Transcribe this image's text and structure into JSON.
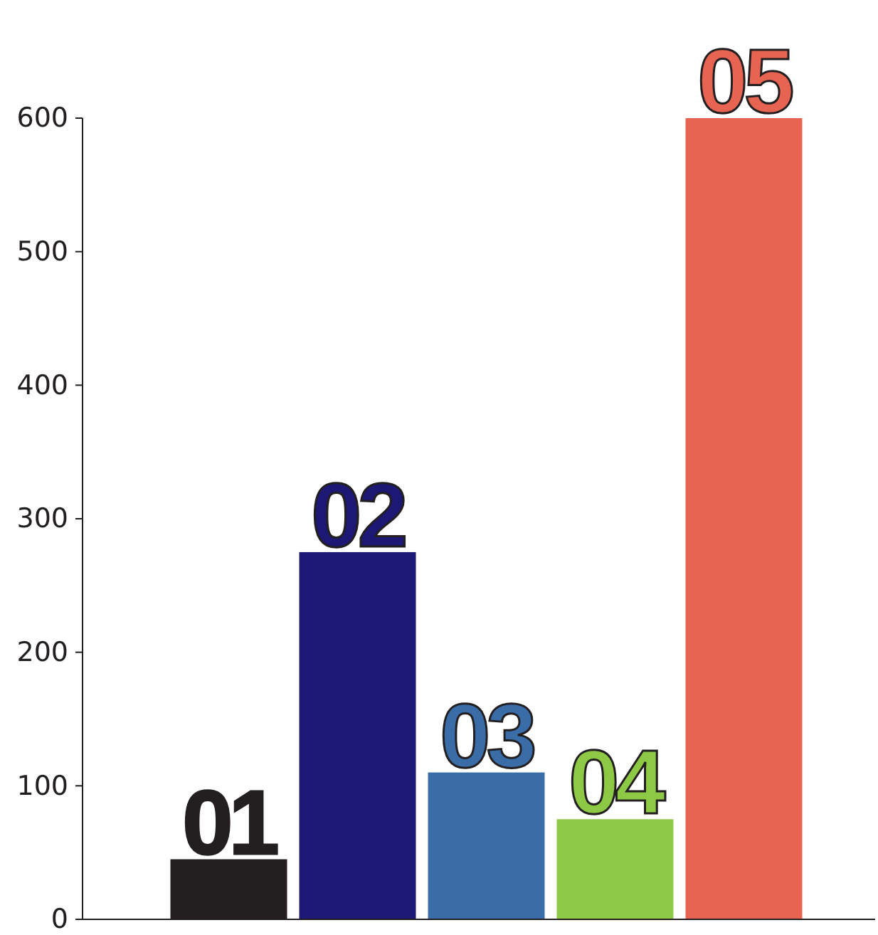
{
  "chart_data": {
    "type": "bar",
    "categories": [
      "01",
      "02",
      "03",
      "04",
      "05"
    ],
    "values": [
      45,
      275,
      110,
      75,
      600
    ],
    "colors": [
      "#231f20",
      "#1d1873",
      "#3a6ca8",
      "#8dc945",
      "#e86452"
    ],
    "ylim": [
      0,
      600
    ],
    "yticks": [
      0,
      100,
      200,
      300,
      400,
      500,
      600
    ]
  }
}
